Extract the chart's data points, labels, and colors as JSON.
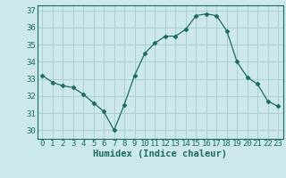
{
  "x": [
    0,
    1,
    2,
    3,
    4,
    5,
    6,
    7,
    8,
    9,
    10,
    11,
    12,
    13,
    14,
    15,
    16,
    17,
    18,
    19,
    20,
    21,
    22,
    23
  ],
  "y": [
    33.2,
    32.8,
    32.6,
    32.5,
    32.1,
    31.6,
    31.1,
    30.0,
    31.5,
    33.2,
    34.5,
    35.1,
    35.5,
    35.5,
    35.9,
    36.7,
    36.8,
    36.7,
    35.8,
    34.0,
    33.1,
    32.7,
    31.7,
    31.4
  ],
  "line_color": "#1a6b5a",
  "marker": "D",
  "marker_size": 2.5,
  "bg_color": "#cce8ea",
  "grid_color": "#aecfd2",
  "xlabel": "Humidex (Indice chaleur)",
  "ylim": [
    29.5,
    37.3
  ],
  "xlim": [
    -0.5,
    23.5
  ],
  "yticks": [
    30,
    31,
    32,
    33,
    34,
    35,
    36,
    37
  ],
  "xticks": [
    0,
    1,
    2,
    3,
    4,
    5,
    6,
    7,
    8,
    9,
    10,
    11,
    12,
    13,
    14,
    15,
    16,
    17,
    18,
    19,
    20,
    21,
    22,
    23
  ],
  "tick_fontsize": 6.5,
  "label_fontsize": 7.5
}
